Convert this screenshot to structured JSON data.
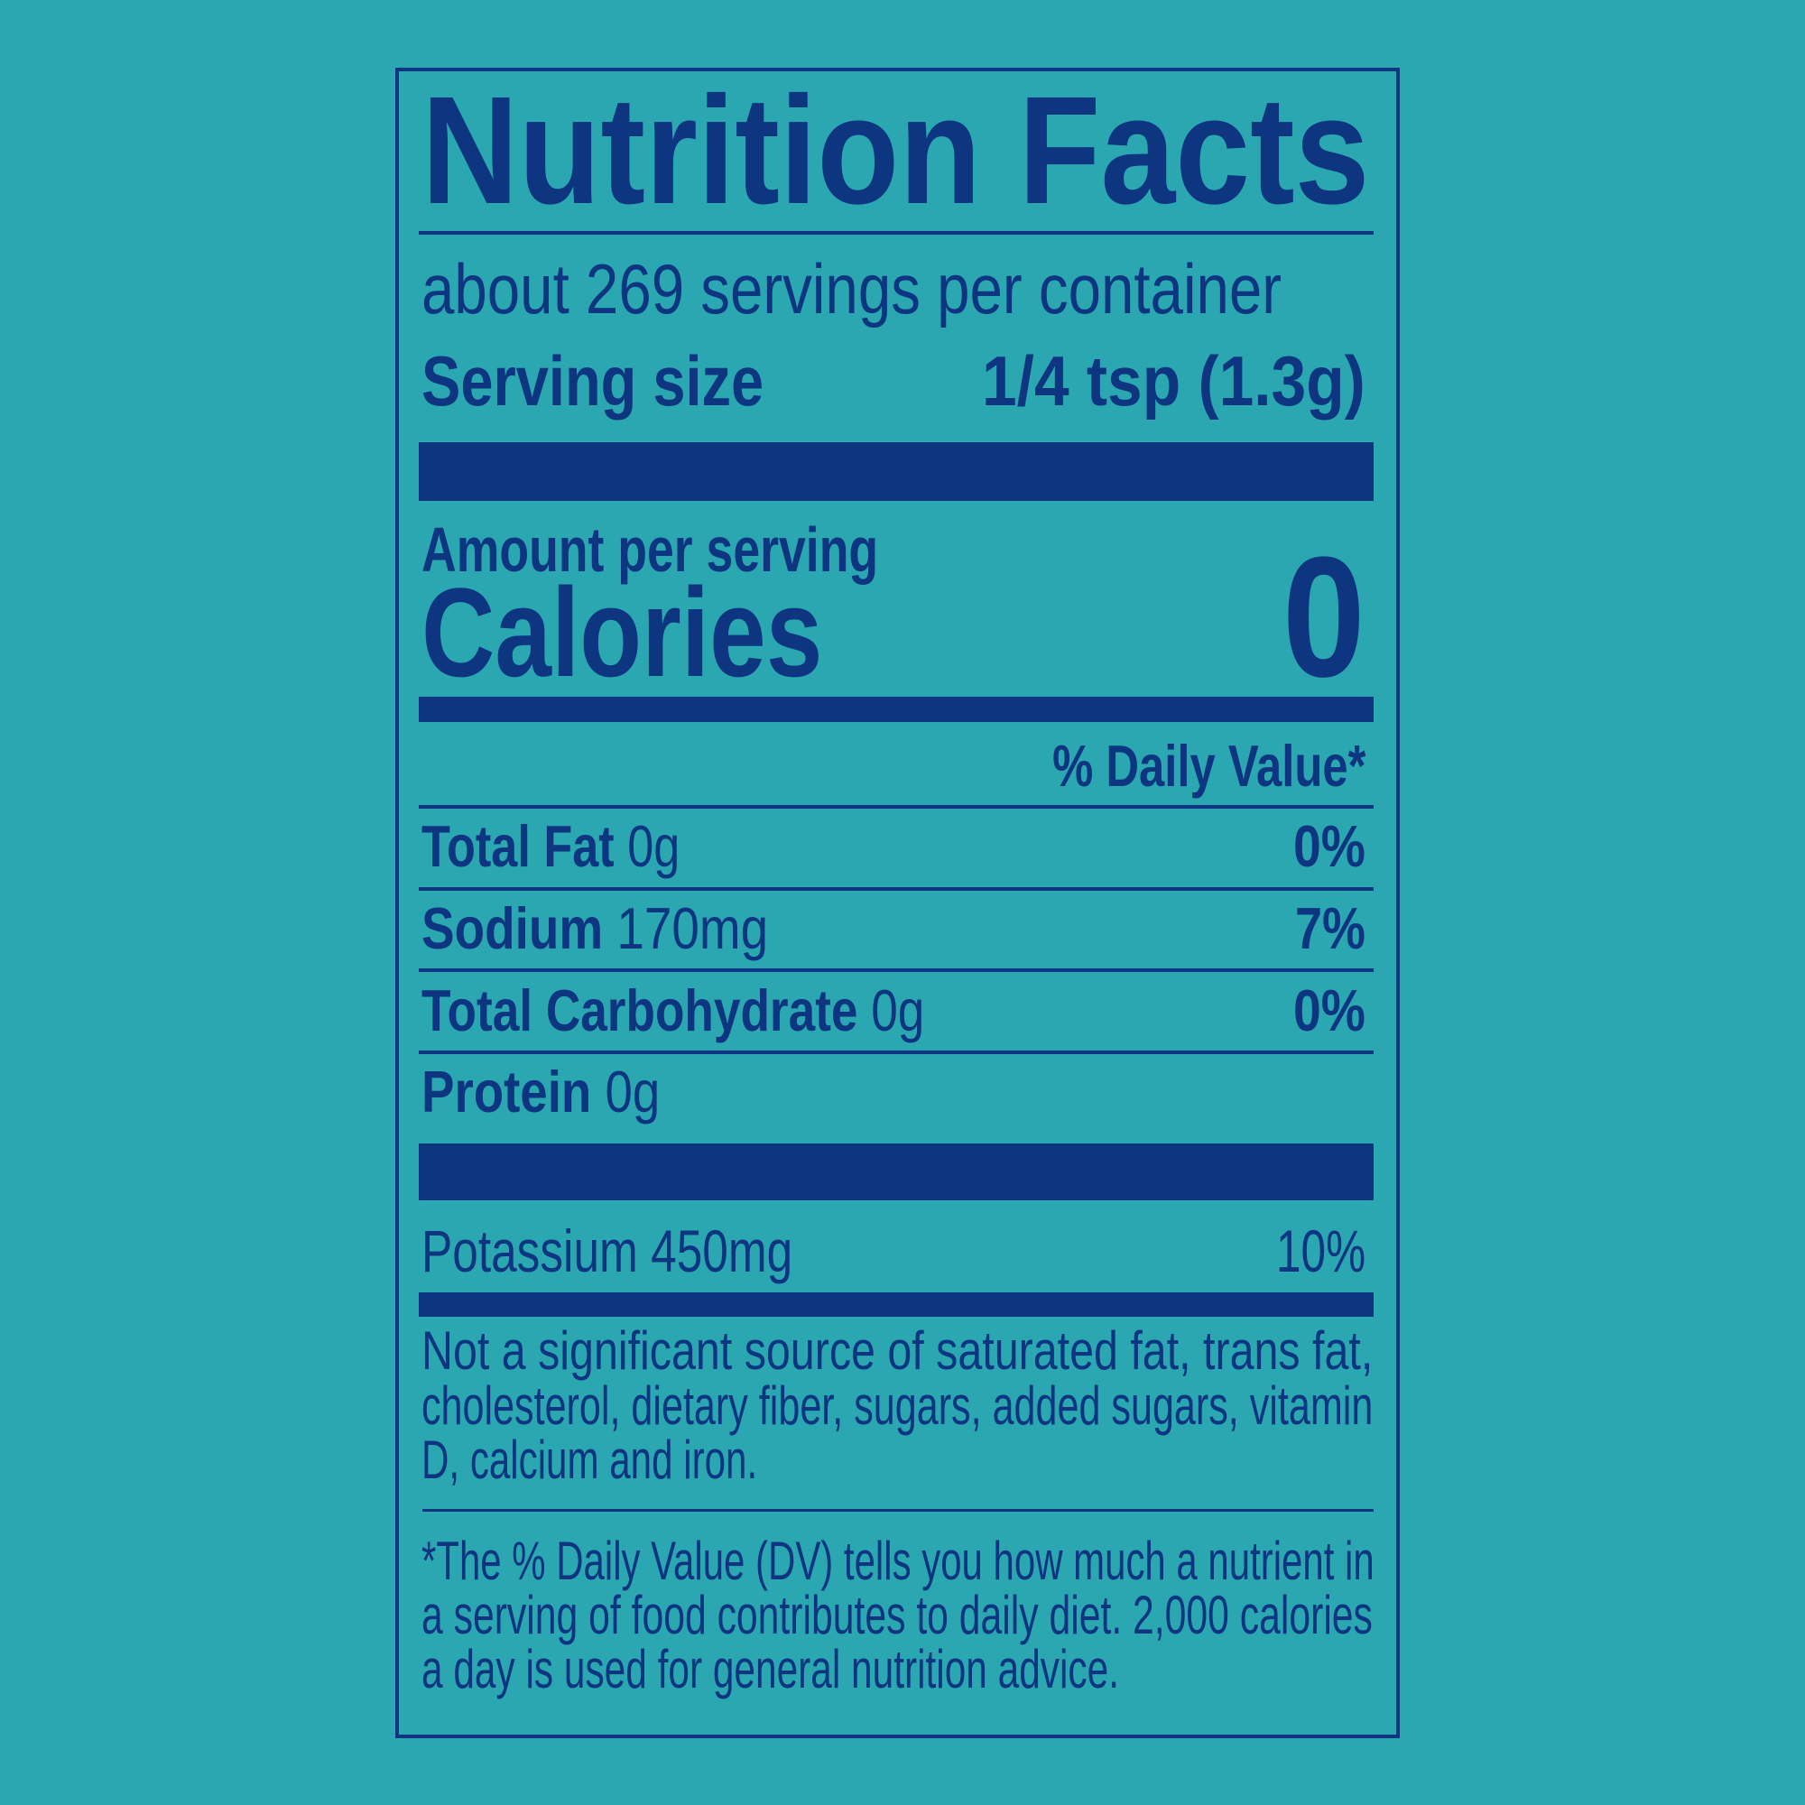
{
  "label": {
    "title": "Nutrition Facts",
    "servings_per_container": "about 269 servings per container",
    "serving_size_label": "Serving size",
    "serving_size_value": "1/4 tsp (1.3g)",
    "amount_per_serving": "Amount per serving",
    "calories_label": "Calories",
    "calories_value": "0",
    "daily_value_header": "% Daily Value*",
    "nutrients": [
      {
        "name": "Total Fat",
        "amount": "0g",
        "dv": "0%"
      },
      {
        "name": "Sodium",
        "amount": "170mg",
        "dv": "7%"
      },
      {
        "name": "Total Carbohydrate",
        "amount": "0g",
        "dv": "0%"
      },
      {
        "name": "Protein",
        "amount": "0g",
        "dv": ""
      }
    ],
    "minerals": [
      {
        "name": "Potassium",
        "amount": "450mg",
        "dv": "10%"
      }
    ],
    "not_significant_lines": [
      "Not a significant source of saturated fat, trans fat,",
      "cholesterol, dietary fiber, sugars, added sugars, vitamin",
      "D, calcium and iron."
    ],
    "footnote_lines": [
      "*The % Daily Value (DV) tells you how much a nutrient in",
      "a serving of food contributes to daily diet. 2,000 calories",
      "a day is used for general nutrition advice."
    ]
  },
  "colors": {
    "background": "#2ba7b2",
    "ink": "#0d3580"
  }
}
